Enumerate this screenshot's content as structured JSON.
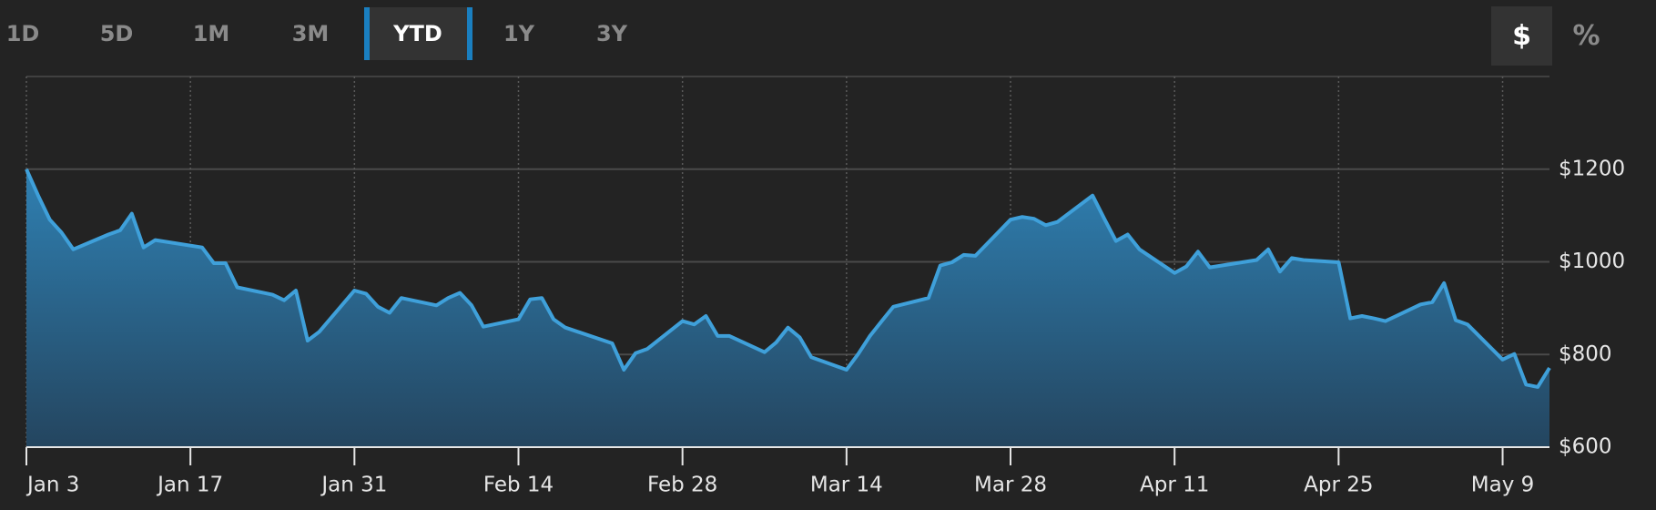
{
  "range_buttons": [
    "1D",
    "5D",
    "1M",
    "3M",
    "YTD",
    "1Y",
    "3Y"
  ],
  "unit_buttons": [
    "$",
    "%"
  ],
  "chart_data": {
    "type": "area",
    "color": "#3fa0da",
    "grid": true,
    "xlim": [
      "Jan 3",
      "May 13"
    ],
    "xticks": [
      "Jan 3",
      "Jan 17",
      "Jan 31",
      "Feb 14",
      "Feb 28",
      "Mar 14",
      "Mar 28",
      "Apr 11",
      "Apr 25",
      "May 9"
    ],
    "ylim": [
      600,
      1400
    ],
    "yticks": [
      {
        "value": 600,
        "label": "$600"
      },
      {
        "value": 800,
        "label": "$800"
      },
      {
        "value": 1000,
        "label": "$1000"
      },
      {
        "value": 1200,
        "label": "$1200"
      }
    ],
    "x": [
      "Jan 3",
      "Jan 4",
      "Jan 5",
      "Jan 6",
      "Jan 7",
      "Jan 10",
      "Jan 11",
      "Jan 12",
      "Jan 13",
      "Jan 14",
      "Jan 18",
      "Jan 19",
      "Jan 20",
      "Jan 21",
      "Jan 24",
      "Jan 25",
      "Jan 26",
      "Jan 27",
      "Jan 28",
      "Jan 31",
      "Feb 1",
      "Feb 2",
      "Feb 3",
      "Feb 4",
      "Feb 7",
      "Feb 8",
      "Feb 9",
      "Feb 10",
      "Feb 11",
      "Feb 14",
      "Feb 15",
      "Feb 16",
      "Feb 17",
      "Feb 18",
      "Feb 22",
      "Feb 23",
      "Feb 24",
      "Feb 25",
      "Feb 28",
      "Mar 1",
      "Mar 2",
      "Mar 3",
      "Mar 4",
      "Mar 7",
      "Mar 8",
      "Mar 9",
      "Mar 10",
      "Mar 11",
      "Mar 14",
      "Mar 15",
      "Mar 16",
      "Mar 17",
      "Mar 18",
      "Mar 21",
      "Mar 22",
      "Mar 23",
      "Mar 24",
      "Mar 25",
      "Mar 28",
      "Mar 29",
      "Mar 30",
      "Mar 31",
      "Apr 1",
      "Apr 4",
      "Apr 5",
      "Apr 6",
      "Apr 7",
      "Apr 8",
      "Apr 11",
      "Apr 12",
      "Apr 13",
      "Apr 14",
      "Apr 18",
      "Apr 19",
      "Apr 20",
      "Apr 21",
      "Apr 22",
      "Apr 25",
      "Apr 26",
      "Apr 27",
      "Apr 28",
      "Apr 29",
      "May 2",
      "May 3",
      "May 4",
      "May 5",
      "May 6",
      "May 9",
      "May 10",
      "May 11",
      "May 12",
      "May 13"
    ],
    "values": [
      1200,
      1143,
      1091,
      1063,
      1027,
      1059,
      1068,
      1104,
      1031,
      1047,
      1031,
      997,
      997,
      945,
      929,
      917,
      938,
      830,
      849,
      938,
      931,
      903,
      890,
      922,
      906,
      922,
      933,
      906,
      860,
      876,
      919,
      922,
      876,
      858,
      824,
      767,
      803,
      812,
      872,
      865,
      883,
      840,
      840,
      805,
      826,
      858,
      837,
      794,
      767,
      801,
      840,
      872,
      903,
      922,
      992,
      999,
      1015,
      1013,
      1091,
      1097,
      1093,
      1079,
      1086,
      1143,
      1093,
      1045,
      1059,
      1027,
      976,
      990,
      1022,
      988,
      1004,
      1027,
      979,
      1008,
      1004,
      999,
      878,
      883,
      878,
      872,
      908,
      913,
      954,
      874,
      865,
      789,
      801,
      735,
      730,
      771
    ]
  }
}
